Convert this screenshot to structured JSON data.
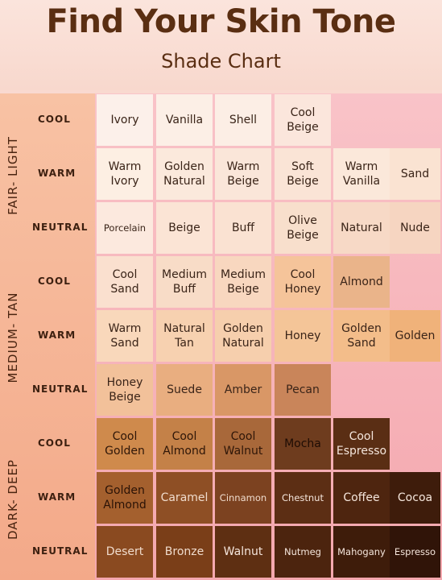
{
  "header": {
    "title": "Find Your Skin Tone",
    "subtitle": "Shade Chart"
  },
  "groups": [
    {
      "label": "FAIR- LIGHT",
      "rows": [
        {
          "undertone": "COOL",
          "shades": [
            {
              "name": "Ivory",
              "color": "#fcf0ea",
              "text": "#3a2418"
            },
            {
              "name": "Vanilla",
              "color": "#fcefe6",
              "text": "#3a2418"
            },
            {
              "name": "Shell",
              "color": "#fceee5",
              "text": "#3a2418"
            },
            {
              "name": "Cool\nBeige",
              "color": "#fbe6dc",
              "text": "#3a2418"
            }
          ]
        },
        {
          "undertone": "WARM",
          "shades": [
            {
              "name": "Warm\nIvory",
              "color": "#fdefe3",
              "text": "#3a2418"
            },
            {
              "name": "Golden\nNatural",
              "color": "#fbe9dc",
              "text": "#3a2418"
            },
            {
              "name": "Warm\nBeige",
              "color": "#fae6d9",
              "text": "#3a2418"
            },
            {
              "name": "Soft\nBeige",
              "color": "#fae4d6",
              "text": "#3a2418"
            },
            {
              "name": "Warm\nVanilla",
              "color": "#fbe8da",
              "text": "#3a2418"
            },
            {
              "name": "Sand",
              "color": "#fae3d2",
              "text": "#3a2418"
            }
          ]
        },
        {
          "undertone": "NEUTRAL",
          "shades": [
            {
              "name": "Porcelain",
              "color": "#fce9de",
              "text": "#3a2418",
              "small": true
            },
            {
              "name": "Beige",
              "color": "#fbe4d5",
              "text": "#3a2418"
            },
            {
              "name": "Buff",
              "color": "#fae2d2",
              "text": "#3a2418"
            },
            {
              "name": "Olive\nBeige",
              "color": "#f8dfcc",
              "text": "#3a2418"
            },
            {
              "name": "Natural",
              "color": "#f7d9c6",
              "text": "#3a2418"
            },
            {
              "name": "Nude",
              "color": "#f6d5c1",
              "text": "#3a2418"
            }
          ]
        }
      ]
    },
    {
      "label": "MEDIUM- TAN",
      "rows": [
        {
          "undertone": "COOL",
          "shades": [
            {
              "name": "Cool\nSand",
              "color": "#fae0cf",
              "text": "#3a2418"
            },
            {
              "name": "Medium\nBuff",
              "color": "#f8dcc7",
              "text": "#3a2418"
            },
            {
              "name": "Medium\nBeige",
              "color": "#f8d7bf",
              "text": "#3a2418"
            },
            {
              "name": "Cool\nHoney",
              "color": "#f5c49a",
              "text": "#3a2418"
            },
            {
              "name": "Almond",
              "color": "#eab48a",
              "text": "#3a2418"
            }
          ]
        },
        {
          "undertone": "WARM",
          "shades": [
            {
              "name": "Warm\nSand",
              "color": "#f9d8bb",
              "text": "#3a2418"
            },
            {
              "name": "Natural\nTan",
              "color": "#f7d1b0",
              "text": "#3a2418"
            },
            {
              "name": "Golden\nNatural",
              "color": "#f6cfad",
              "text": "#3a2418"
            },
            {
              "name": "Honey",
              "color": "#f4c598",
              "text": "#3a2418"
            },
            {
              "name": "Golden\nSand",
              "color": "#f3bd8a",
              "text": "#3a2418"
            },
            {
              "name": "Golden",
              "color": "#f0b27a",
              "text": "#3a2418"
            }
          ]
        },
        {
          "undertone": "NEUTRAL",
          "shades": [
            {
              "name": "Honey\nBeige",
              "color": "#f2c19a",
              "text": "#3a2418"
            },
            {
              "name": "Suede",
              "color": "#e9ae80",
              "text": "#3a2418"
            },
            {
              "name": "Amber",
              "color": "#d99766",
              "text": "#3a2418"
            },
            {
              "name": "Pecan",
              "color": "#c9855a",
              "text": "#3a2418"
            }
          ]
        }
      ]
    },
    {
      "label": "DARK- DEEP",
      "rows": [
        {
          "undertone": "COOL",
          "shades": [
            {
              "name": "Cool\nGolden",
              "color": "#cf8a4c",
              "text": "#2e1608"
            },
            {
              "name": "Cool\nAlmond",
              "color": "#c48148",
              "text": "#2e1608"
            },
            {
              "name": "Cool\nWalnut",
              "color": "#a8683a",
              "text": "#2e1608"
            },
            {
              "name": "Mocha",
              "color": "#6e3c1e",
              "text": "#1e0c04"
            },
            {
              "name": "Cool\nEspresso",
              "color": "#5a2e14",
              "text": "#f5e6dc"
            }
          ]
        },
        {
          "undertone": "WARM",
          "shades": [
            {
              "name": "Golden\nAlmond",
              "color": "#a4602e",
              "text": "#2a1206"
            },
            {
              "name": "Caramel",
              "color": "#8e4f25",
              "text": "#f0dccd"
            },
            {
              "name": "Cinnamon",
              "color": "#7c4220",
              "text": "#f0dccd",
              "small": true
            },
            {
              "name": "Chestnut",
              "color": "#5c2e14",
              "text": "#f5e6dc",
              "small": true
            },
            {
              "name": "Coffee",
              "color": "#4e250f",
              "text": "#f5e6dc"
            },
            {
              "name": "Cocoa",
              "color": "#3e1c0b",
              "text": "#f5e6dc"
            }
          ]
        },
        {
          "undertone": "NEUTRAL",
          "shades": [
            {
              "name": "Desert",
              "color": "#8a4a20",
              "text": "#f0dccd"
            },
            {
              "name": "Bronze",
              "color": "#7a3e18",
              "text": "#f0dccd"
            },
            {
              "name": "Walnut",
              "color": "#5e2f12",
              "text": "#f5e6dc"
            },
            {
              "name": "Nutmeg",
              "color": "#4c240e",
              "text": "#f5e6dc",
              "small": true
            },
            {
              "name": "Mahogany",
              "color": "#3e1c0a",
              "text": "#f5e6dc",
              "small": true
            },
            {
              "name": "Espresso",
              "color": "#301408",
              "text": "#f5e6dc",
              "small": true
            }
          ]
        }
      ]
    }
  ]
}
